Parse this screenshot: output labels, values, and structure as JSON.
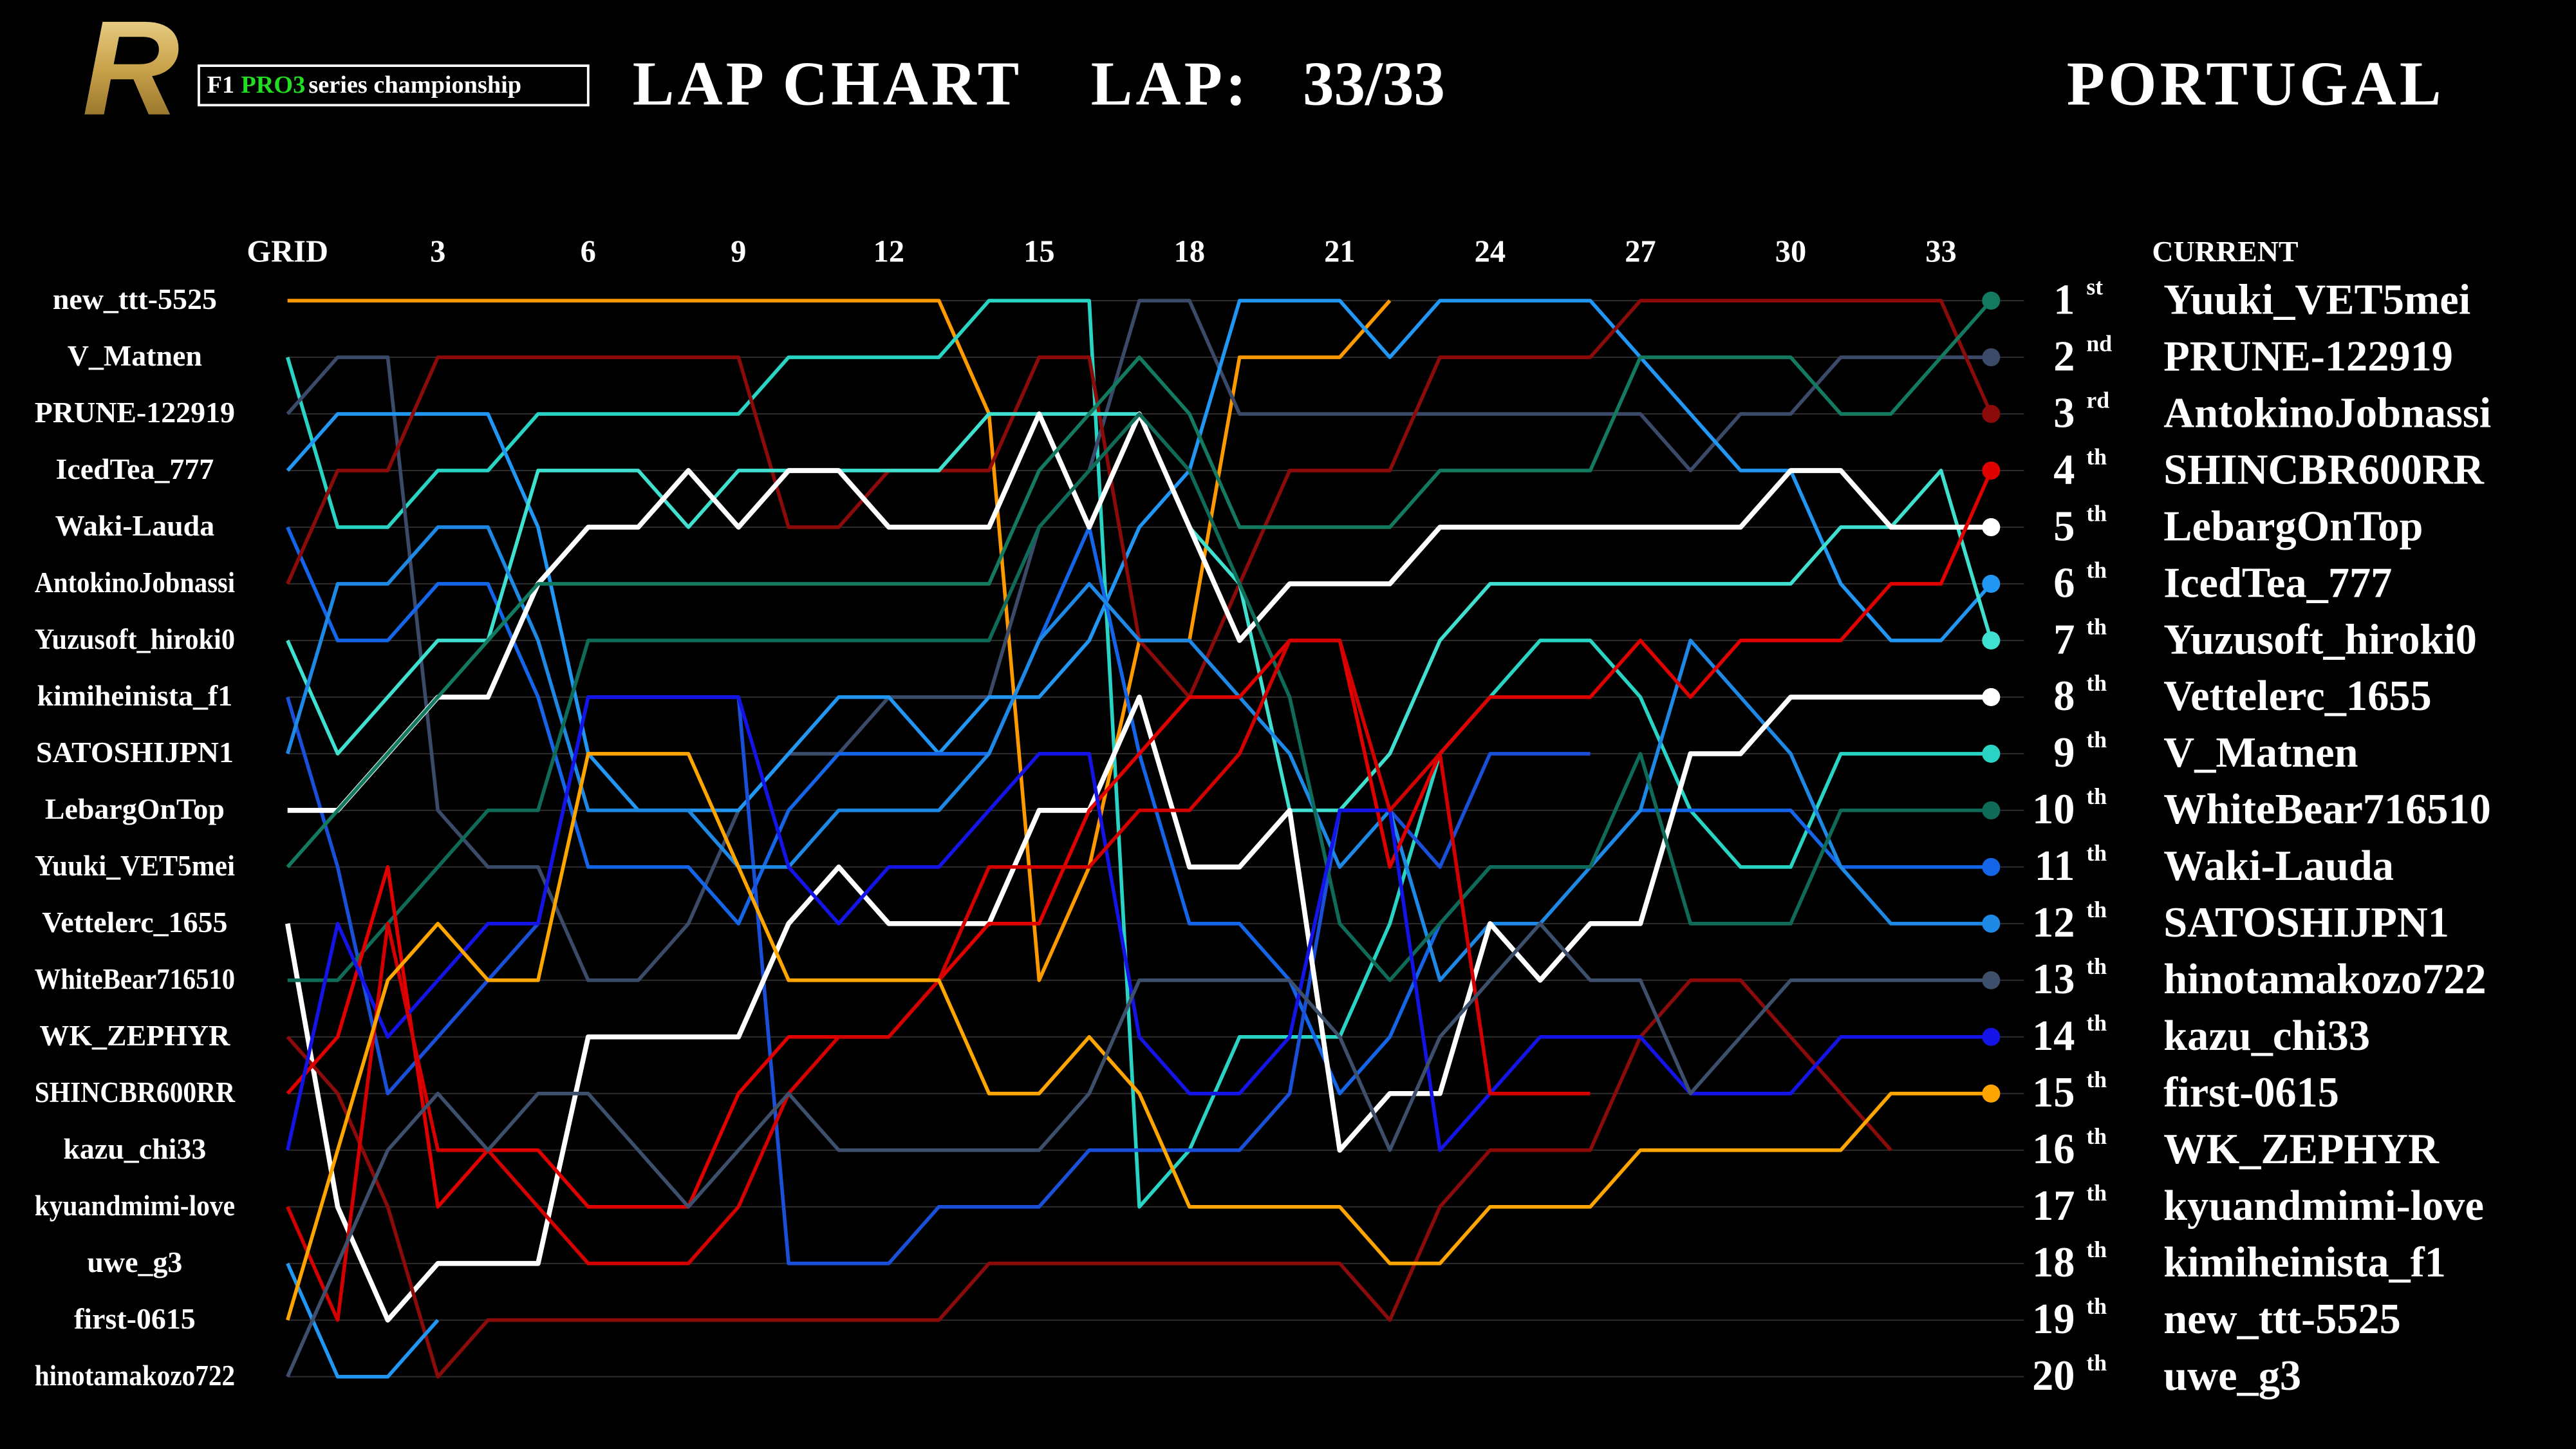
{
  "header": {
    "logo_letter": "R",
    "logo_f1": "F1",
    "logo_pro3": "PRO3",
    "logo_series": "series championship",
    "title": "LAP CHART",
    "lap_label": "LAP:",
    "lap_value": "33/33",
    "track": "PORTUGAL"
  },
  "chart_data": {
    "type": "line",
    "x": [
      0,
      1,
      2,
      3,
      4,
      5,
      6,
      7,
      8,
      9,
      10,
      11,
      12,
      13,
      14,
      15,
      16,
      17,
      18,
      19,
      20,
      21,
      22,
      23,
      24,
      25,
      26,
      27,
      28,
      29,
      30,
      31,
      32,
      33,
      34
    ],
    "xlim": [
      0,
      34
    ],
    "xticks": [
      {
        "value": 0,
        "label": "GRID"
      },
      3,
      6,
      9,
      12,
      15,
      18,
      21,
      24,
      27,
      30,
      33
    ],
    "ylim": [
      1,
      20
    ],
    "y_inverted": true,
    "yticks": [
      1,
      2,
      3,
      4,
      5,
      6,
      7,
      8,
      9,
      10,
      11,
      12,
      13,
      14,
      15,
      16,
      17,
      18,
      19,
      20
    ],
    "ordinal_suffixes": [
      "st",
      "nd",
      "rd",
      "th",
      "th",
      "th",
      "th",
      "th",
      "th",
      "th",
      "th",
      "th",
      "th",
      "th",
      "th",
      "th",
      "th",
      "th",
      "th",
      "th"
    ],
    "current_header": "CURRENT",
    "current_order": [
      "Yuuki_VET5mei",
      "PRUNE-122919",
      "AntokinoJobnassi",
      "SHINCBR600RR",
      "LebargOnTop",
      "IcedTea_777",
      "Yuzusoft_hiroki0",
      "Vettelerc_1655",
      "V_Matnen",
      "WhiteBear716510",
      "Waki-Lauda",
      "SATOSHIJPN1",
      "hinotamakozo722",
      "kazu_chi33",
      "first-0615",
      "WK_ZEPHYR",
      "kyuandmimi-love",
      "kimiheinista_f1",
      "new_ttt-5525",
      "uwe_g3"
    ],
    "grid": true,
    "series": [
      {
        "name": "new_ttt-5525",
        "color": "#ff9900",
        "values": [
          1,
          1,
          1,
          1,
          1,
          1,
          1,
          1,
          1,
          1,
          1,
          1,
          1,
          1,
          3,
          13,
          11,
          7,
          7,
          2,
          2,
          2,
          1,
          null,
          null,
          null,
          null,
          null,
          null,
          null,
          null,
          null,
          null,
          null,
          null
        ]
      },
      {
        "name": "V_Matnen",
        "color": "#2ad4c4",
        "values": [
          2,
          5,
          5,
          4,
          4,
          3,
          3,
          3,
          3,
          3,
          2,
          2,
          2,
          2,
          1,
          1,
          1,
          17,
          16,
          14,
          14,
          14,
          12,
          9,
          8,
          7,
          7,
          8,
          10,
          11,
          11,
          9,
          9,
          9,
          9
        ]
      },
      {
        "name": "PRUNE-122919",
        "color": "#3a4a68",
        "values": [
          3,
          2,
          2,
          10,
          11,
          11,
          13,
          13,
          12,
          10,
          9,
          9,
          8,
          8,
          8,
          5,
          4,
          1,
          1,
          3,
          3,
          3,
          3,
          3,
          3,
          3,
          3,
          3,
          4,
          3,
          3,
          2,
          2,
          2,
          2
        ]
      },
      {
        "name": "IcedTea_777",
        "color": "#2196f3",
        "values": [
          4,
          3,
          3,
          3,
          3,
          5,
          9,
          10,
          10,
          10,
          9,
          8,
          8,
          9,
          8,
          8,
          7,
          5,
          4,
          1,
          1,
          1,
          2,
          1,
          1,
          1,
          1,
          2,
          3,
          4,
          4,
          6,
          7,
          7,
          6
        ]
      },
      {
        "name": "Waki-Lauda",
        "color": "#1565e8",
        "values": [
          5,
          7,
          7,
          6,
          6,
          8,
          11,
          11,
          11,
          12,
          10,
          9,
          9,
          9,
          9,
          7,
          5,
          9,
          12,
          12,
          13,
          15,
          14,
          12,
          11,
          11,
          11,
          10,
          10,
          10,
          10,
          11,
          11,
          11,
          11
        ]
      },
      {
        "name": "AntokinoJobnassi",
        "color": "#8b0a0a",
        "values": [
          6,
          4,
          4,
          2,
          2,
          2,
          2,
          2,
          2,
          2,
          5,
          5,
          4,
          4,
          4,
          2,
          2,
          7,
          8,
          6,
          4,
          4,
          4,
          2,
          2,
          2,
          2,
          1,
          1,
          1,
          1,
          1,
          1,
          1,
          3
        ]
      },
      {
        "name": "Yuzusoft_hiroki0",
        "color": "#40e0d0",
        "values": [
          7,
          9,
          8,
          7,
          7,
          4,
          4,
          4,
          5,
          4,
          4,
          4,
          4,
          4,
          3,
          3,
          3,
          3,
          5,
          6,
          10,
          10,
          9,
          7,
          6,
          6,
          6,
          6,
          6,
          6,
          6,
          5,
          5,
          4,
          7
        ]
      },
      {
        "name": "kimiheinista_f1",
        "color": "#1a4fd8",
        "values": [
          8,
          11,
          15,
          14,
          13,
          12,
          8,
          8,
          8,
          8,
          18,
          18,
          18,
          17,
          17,
          17,
          16,
          16,
          16,
          16,
          15,
          10,
          10,
          11,
          9,
          9,
          9,
          null,
          null,
          null,
          null,
          null,
          null,
          null,
          null
        ]
      },
      {
        "name": "SATOSHIJPN1",
        "color": "#1e88e5",
        "values": [
          9,
          6,
          6,
          5,
          5,
          7,
          10,
          10,
          10,
          11,
          11,
          10,
          10,
          10,
          9,
          7,
          6,
          7,
          7,
          8,
          9,
          11,
          10,
          13,
          12,
          12,
          11,
          10,
          7,
          8,
          9,
          11,
          12,
          12,
          12
        ]
      },
      {
        "name": "LebargOnTop",
        "color": "#ffffff",
        "values": [
          10,
          10,
          9,
          8,
          8,
          6,
          5,
          5,
          4,
          5,
          4,
          4,
          5,
          5,
          5,
          3,
          5,
          3,
          5,
          7,
          6,
          6,
          6,
          5,
          5,
          5,
          5,
          5,
          5,
          5,
          4,
          4,
          5,
          5,
          5
        ]
      },
      {
        "name": "Yuuki_VET5mei",
        "color": "#137a60",
        "values": [
          11,
          10,
          9,
          8,
          7,
          6,
          6,
          6,
          6,
          6,
          6,
          6,
          6,
          6,
          6,
          4,
          3,
          2,
          3,
          5,
          5,
          5,
          5,
          4,
          4,
          4,
          4,
          2,
          2,
          2,
          2,
          3,
          3,
          2,
          1
        ]
      },
      {
        "name": "Vettelerc_1655",
        "color": "#ffffff",
        "values": [
          12,
          17,
          19,
          18,
          18,
          18,
          14,
          14,
          14,
          14,
          12,
          11,
          12,
          12,
          12,
          10,
          10,
          8,
          11,
          11,
          10,
          16,
          15,
          15,
          12,
          13,
          12,
          12,
          9,
          9,
          8,
          8,
          8,
          8,
          8
        ]
      },
      {
        "name": "WhiteBear716510",
        "color": "#0f6b58",
        "values": [
          13,
          13,
          12,
          11,
          10,
          10,
          7,
          7,
          7,
          7,
          7,
          7,
          7,
          7,
          7,
          5,
          4,
          3,
          4,
          6,
          8,
          12,
          13,
          12,
          11,
          11,
          11,
          9,
          12,
          12,
          12,
          10,
          10,
          10,
          10
        ]
      },
      {
        "name": "WK_ZEPHYR",
        "color": "#8b0a0a",
        "values": [
          14,
          15,
          17,
          20,
          19,
          19,
          19,
          19,
          19,
          19,
          19,
          19,
          19,
          19,
          18,
          18,
          18,
          18,
          18,
          18,
          18,
          18,
          19,
          17,
          16,
          16,
          16,
          14,
          13,
          13,
          14,
          15,
          16,
          null,
          null
        ]
      },
      {
        "name": "SHINCBR600RR",
        "color": "#e00000",
        "values": [
          15,
          14,
          11,
          17,
          16,
          16,
          17,
          17,
          17,
          15,
          14,
          14,
          14,
          13,
          12,
          12,
          10,
          9,
          8,
          8,
          7,
          7,
          11,
          9,
          8,
          8,
          8,
          7,
          8,
          7,
          7,
          7,
          6,
          6,
          4
        ]
      },
      {
        "name": "kazu_chi33",
        "color": "#1414e6",
        "values": [
          16,
          12,
          14,
          13,
          12,
          12,
          8,
          8,
          8,
          8,
          11,
          12,
          11,
          11,
          10,
          9,
          9,
          14,
          15,
          15,
          14,
          10,
          10,
          16,
          15,
          14,
          14,
          14,
          15,
          15,
          15,
          14,
          14,
          14,
          14
        ]
      },
      {
        "name": "kyuandmimi-love",
        "color": "#d40000",
        "values": [
          17,
          19,
          12,
          16,
          16,
          17,
          18,
          18,
          18,
          17,
          15,
          14,
          14,
          13,
          11,
          11,
          11,
          10,
          10,
          9,
          7,
          7,
          10,
          9,
          15,
          15,
          15,
          null,
          null,
          null,
          null,
          null,
          null,
          null,
          null
        ]
      },
      {
        "name": "uwe_g3",
        "color": "#2196f3",
        "values": [
          18,
          20,
          20,
          19,
          null,
          null,
          null,
          null,
          null,
          null,
          null,
          null,
          null,
          null,
          null,
          null,
          null,
          null,
          null,
          null,
          null,
          null,
          null,
          null,
          null,
          null,
          null,
          null,
          null,
          null,
          null,
          null,
          null,
          null,
          null
        ]
      },
      {
        "name": "first-0615",
        "color": "#ffa500",
        "values": [
          19,
          16,
          13,
          12,
          13,
          13,
          9,
          9,
          9,
          11,
          13,
          13,
          13,
          13,
          15,
          15,
          14,
          15,
          17,
          17,
          17,
          17,
          18,
          18,
          17,
          17,
          17,
          16,
          16,
          16,
          16,
          16,
          15,
          15,
          15
        ]
      },
      {
        "name": "hinotamakozo722",
        "color": "#3d4f6b",
        "values": [
          20,
          18,
          16,
          15,
          16,
          15,
          15,
          16,
          17,
          16,
          15,
          16,
          16,
          16,
          16,
          16,
          15,
          13,
          13,
          13,
          13,
          14,
          16,
          14,
          13,
          12,
          13,
          13,
          15,
          14,
          13,
          13,
          13,
          13,
          13
        ]
      }
    ]
  }
}
